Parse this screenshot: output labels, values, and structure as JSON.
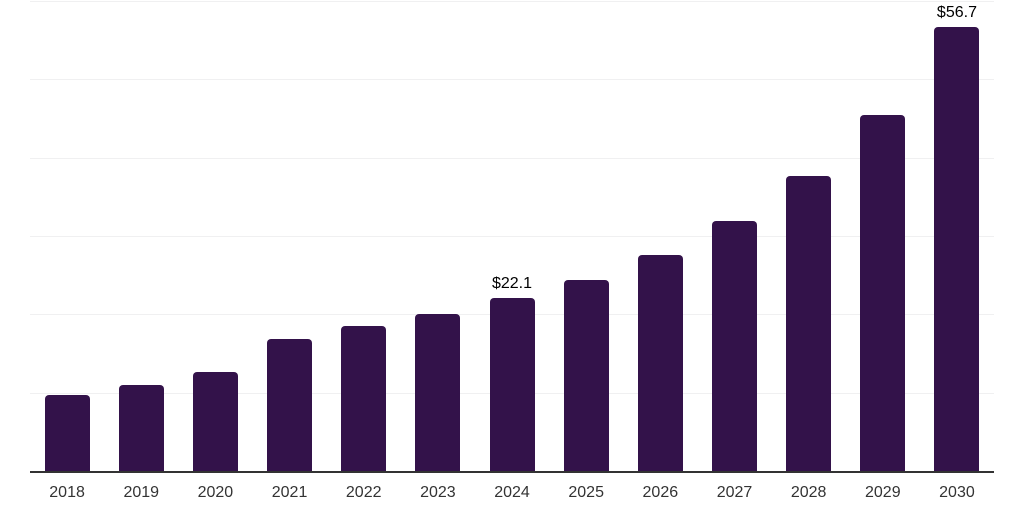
{
  "chart_data": {
    "type": "bar",
    "title": "",
    "xlabel": "",
    "ylabel": "",
    "categories": [
      "2018",
      "2019",
      "2020",
      "2021",
      "2022",
      "2023",
      "2024",
      "2025",
      "2026",
      "2027",
      "2028",
      "2029",
      "2030"
    ],
    "values": [
      9.7,
      11.0,
      12.7,
      16.9,
      18.5,
      20.1,
      22.1,
      24.4,
      27.6,
      31.9,
      37.7,
      45.4,
      56.7
    ],
    "data_labels": {
      "2024": "$22.1",
      "2030": "$56.7"
    },
    "ylim": [
      0,
      60
    ],
    "gridline_step": 10,
    "grid": true,
    "legend": false,
    "colors": {
      "bar": "#33124a",
      "axis": "#333333",
      "gridline": "#f0f0f1",
      "data_label": "#000000",
      "tick_label": "#333333"
    }
  }
}
